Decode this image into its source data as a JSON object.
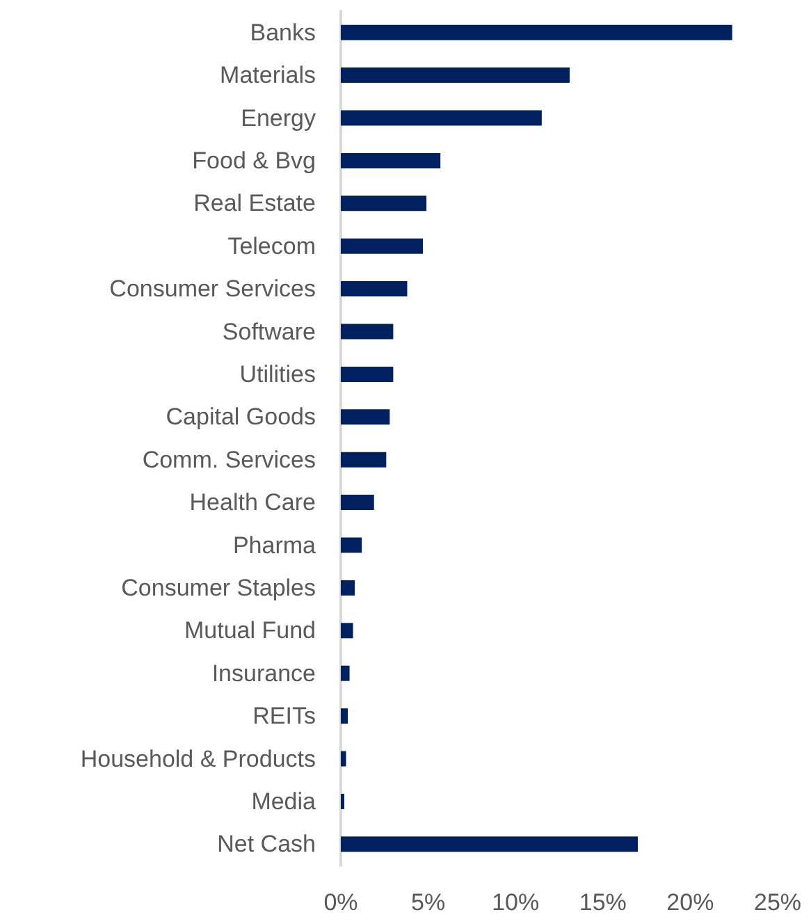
{
  "chart_data": {
    "type": "bar",
    "orientation": "horizontal",
    "categories": [
      "Banks",
      "Materials",
      "Energy",
      "Food & Bvg",
      "Real Estate",
      "Telecom",
      "Consumer Services",
      "Software",
      "Utilities",
      "Capital Goods",
      "Comm. Services",
      "Health Care",
      "Pharma",
      "Consumer Staples",
      "Mutual Fund",
      "Insurance",
      "REITs",
      "Household & Products",
      "Media",
      "Net Cash"
    ],
    "values": [
      22.4,
      13.1,
      11.5,
      5.7,
      4.9,
      4.7,
      3.8,
      3.0,
      3.0,
      2.8,
      2.6,
      1.9,
      1.2,
      0.8,
      0.7,
      0.5,
      0.4,
      0.3,
      0.2,
      17.0
    ],
    "color": "#002060",
    "xlim": [
      0,
      25
    ],
    "xticks": [
      {
        "value": 0,
        "label": "0%"
      },
      {
        "value": 5,
        "label": "5%"
      },
      {
        "value": 10,
        "label": "10%"
      },
      {
        "value": 15,
        "label": "15%"
      },
      {
        "value": 20,
        "label": "20%"
      },
      {
        "value": 25,
        "label": "25%"
      }
    ],
    "grid": false
  }
}
